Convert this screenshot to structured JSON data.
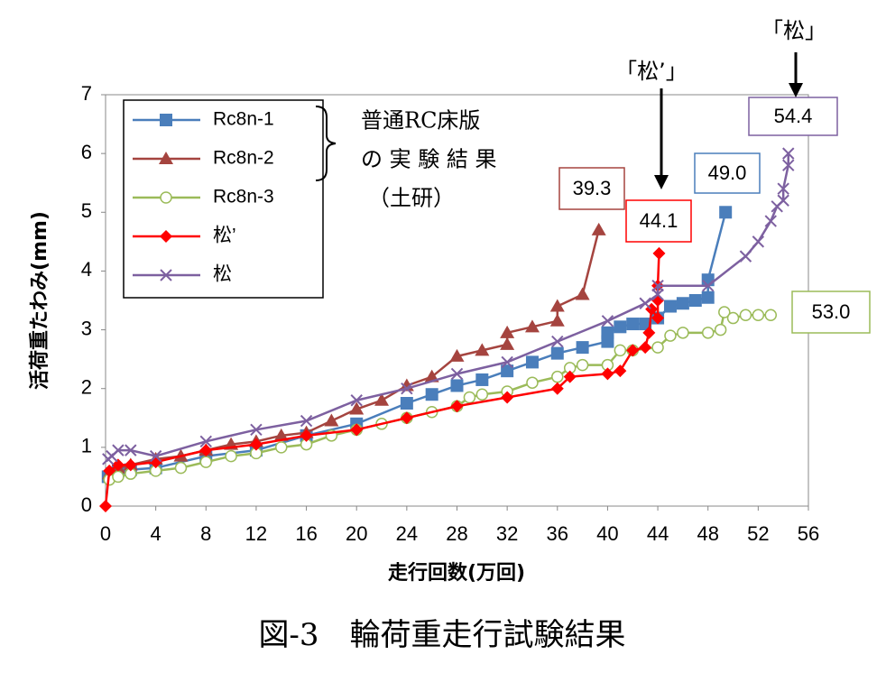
{
  "chart_data": {
    "type": "line",
    "y_label": "活荷重たわみ(mm)",
    "x_label": "走行回数(万回)",
    "caption": "図-3　輪荷重走行試験結果",
    "xlim": [
      0,
      56
    ],
    "xticks": [
      0,
      4,
      8,
      12,
      16,
      20,
      24,
      28,
      32,
      36,
      40,
      44,
      48,
      52,
      56
    ],
    "ylim": [
      0,
      7
    ],
    "yticks": [
      0,
      1,
      2,
      3,
      4,
      5,
      6,
      7
    ],
    "group_label": [
      "普通RC床版",
      "の 実 験 結 果",
      "（土研）"
    ],
    "arrow_labels": [
      "「松’」",
      "「松」"
    ],
    "callouts": [
      {
        "text": "39.3",
        "color": "#a5443f"
      },
      {
        "text": "44.1",
        "color": "#ff0000"
      },
      {
        "text": "49.0",
        "color": "#4a7ebb"
      },
      {
        "text": "53.0",
        "color": "#9bbb59"
      },
      {
        "text": "54.4",
        "color": "#7d60a0"
      }
    ],
    "series": [
      {
        "name": "Rc8n-1",
        "color": "#4a7ebb",
        "marker": "square",
        "x": [
          0.2,
          0.5,
          1,
          2,
          4,
          8,
          12,
          16,
          20,
          24,
          26,
          28,
          30,
          32,
          34,
          36,
          38,
          40,
          40,
          41,
          42,
          43,
          44,
          45,
          46,
          47,
          48,
          48,
          49.4
        ],
        "values": [
          0.5,
          0.55,
          0.6,
          0.62,
          0.65,
          0.85,
          0.95,
          1.2,
          1.4,
          1.75,
          1.9,
          2.05,
          2.15,
          2.3,
          2.45,
          2.6,
          2.7,
          2.8,
          2.95,
          3.05,
          3.1,
          3.1,
          3.2,
          3.4,
          3.45,
          3.5,
          3.55,
          3.85,
          5.0
        ]
      },
      {
        "name": "Rc8n-2",
        "color": "#a5443f",
        "marker": "triangle",
        "x": [
          0.3,
          1,
          2,
          4,
          6,
          8,
          10,
          12,
          14,
          16,
          18,
          20,
          22,
          24,
          26,
          28,
          30,
          32,
          32,
          34,
          36,
          36,
          38,
          39.3
        ],
        "values": [
          0.55,
          0.65,
          0.7,
          0.8,
          0.85,
          0.95,
          1.05,
          1.1,
          1.2,
          1.25,
          1.45,
          1.65,
          1.8,
          2.05,
          2.2,
          2.55,
          2.65,
          2.75,
          2.95,
          3.05,
          3.15,
          3.4,
          3.6,
          4.7
        ]
      },
      {
        "name": "Rc8n-3",
        "color": "#9bbb59",
        "marker": "circle",
        "x": [
          0.3,
          1,
          2,
          4,
          6,
          8,
          10,
          12,
          14,
          16,
          18,
          20,
          22,
          24,
          26,
          28,
          29,
          30,
          32,
          34,
          36,
          37,
          38,
          40,
          41,
          42,
          44,
          45,
          46,
          48,
          49,
          49.3,
          50,
          51,
          52,
          53
        ],
        "values": [
          0.45,
          0.5,
          0.55,
          0.6,
          0.65,
          0.75,
          0.85,
          0.9,
          1.0,
          1.05,
          1.2,
          1.3,
          1.4,
          1.5,
          1.6,
          1.7,
          1.85,
          1.9,
          1.95,
          2.1,
          2.2,
          2.35,
          2.4,
          2.4,
          2.65,
          2.65,
          2.7,
          2.9,
          2.95,
          2.95,
          3.0,
          3.3,
          3.2,
          3.25,
          3.25,
          3.25
        ]
      },
      {
        "name": "松’",
        "color": "#ff0000",
        "marker": "diamond",
        "x": [
          0,
          0.3,
          1,
          2,
          4,
          8,
          12,
          16,
          20,
          24,
          28,
          32,
          36,
          37,
          40,
          41,
          42,
          43,
          43.3,
          43.5,
          44,
          44,
          44,
          44.1
        ],
        "values": [
          0,
          0.6,
          0.7,
          0.7,
          0.75,
          0.95,
          1.05,
          1.2,
          1.3,
          1.5,
          1.7,
          1.85,
          2.0,
          2.2,
          2.25,
          2.3,
          2.65,
          2.7,
          2.95,
          3.35,
          3.2,
          3.5,
          3.75,
          4.3
        ]
      },
      {
        "name": "松",
        "color": "#7d60a0",
        "marker": "x",
        "x": [
          0.2,
          0.5,
          1,
          2,
          4,
          8,
          12,
          16,
          20,
          24,
          28,
          32,
          36,
          40,
          43,
          44,
          44,
          48,
          51,
          52,
          53,
          53.5,
          54,
          54,
          54.4,
          54.4
        ],
        "values": [
          0.8,
          0.85,
          0.95,
          0.95,
          0.85,
          1.1,
          1.3,
          1.45,
          1.8,
          2.0,
          2.25,
          2.45,
          2.8,
          3.15,
          3.45,
          3.6,
          3.75,
          3.75,
          4.25,
          4.5,
          4.85,
          5.1,
          5.2,
          5.4,
          5.8,
          6.0
        ]
      }
    ]
  }
}
